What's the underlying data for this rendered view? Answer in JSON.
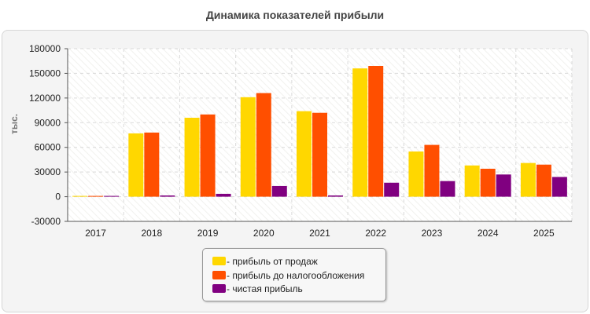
{
  "chart_data": {
    "type": "bar",
    "title": "Динамика показателей прибыли",
    "ylabel": "тыс.",
    "xlabel": "",
    "categories": [
      "2017",
      "2018",
      "2019",
      "2020",
      "2021",
      "2022",
      "2023",
      "2024",
      "2025"
    ],
    "ylim": [
      -30000,
      180000
    ],
    "yticks": [
      180000,
      150000,
      120000,
      90000,
      60000,
      30000,
      0,
      -30000
    ],
    "grid": true,
    "legend_position": "bottom-center",
    "series": [
      {
        "name": "- прибыль от продаж",
        "color": "#ffd700",
        "values": [
          300,
          77000,
          96000,
          121000,
          104000,
          156000,
          55000,
          38000,
          41000
        ]
      },
      {
        "name": "- прибыль до налогообложения",
        "color": "#ff4f00",
        "values": [
          600,
          78000,
          100000,
          126000,
          102000,
          159000,
          63000,
          34000,
          39000
        ]
      },
      {
        "name": "- чистая прибыль",
        "color": "#800080",
        "values": [
          400,
          1500,
          3500,
          13000,
          1500,
          17000,
          19000,
          27000,
          24000
        ]
      }
    ]
  }
}
